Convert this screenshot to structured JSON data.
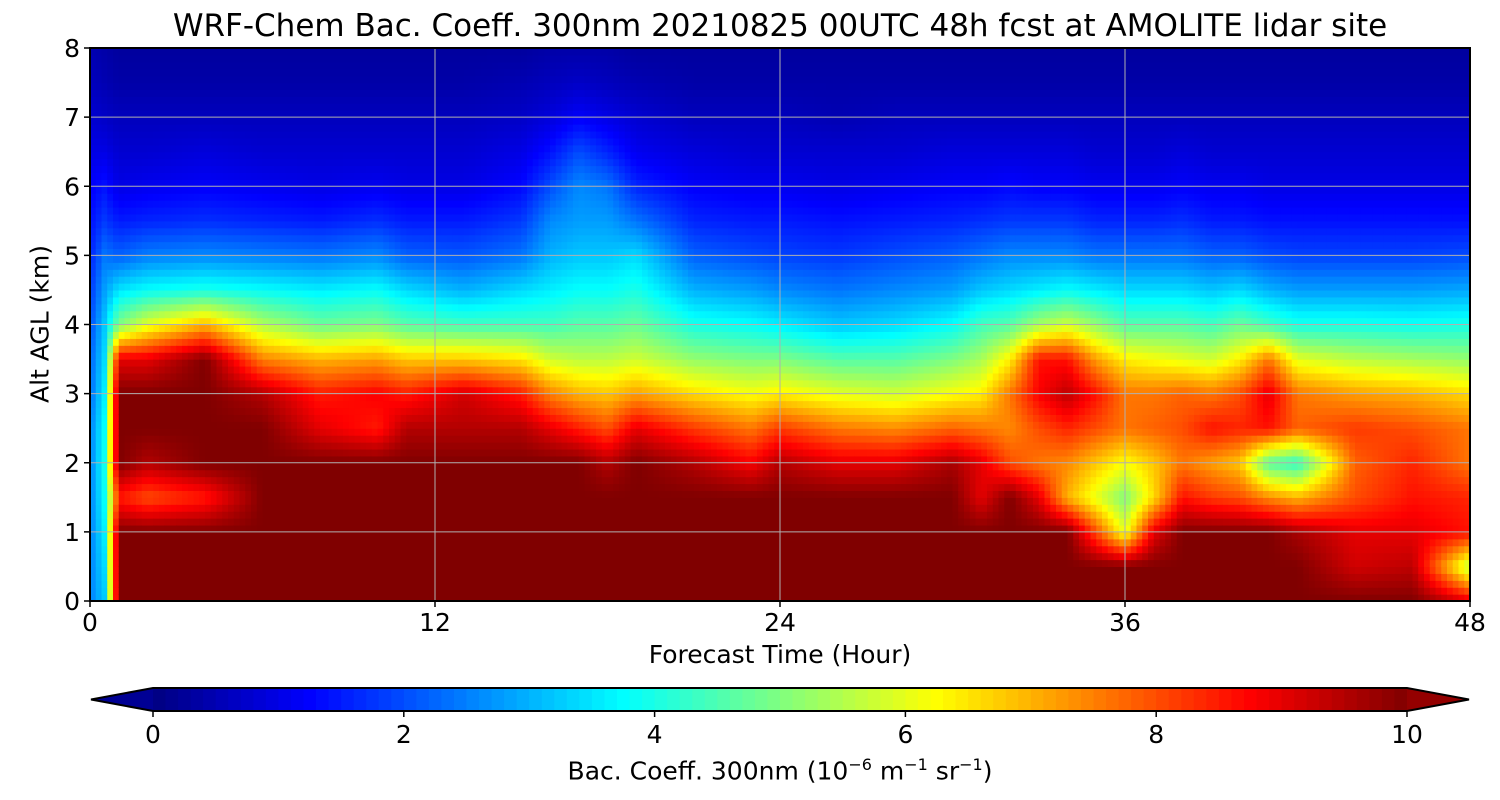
{
  "chart_data": {
    "type": "heatmap",
    "title": "WRF-Chem Bac. Coeff. 300nm  20210825 00UTC 48h fcst at AMOLITE lidar site",
    "xlabel": "Forecast Time (Hour)",
    "ylabel": "Alt AGL (km)",
    "xlim": [
      0,
      48
    ],
    "ylim": [
      0,
      8
    ],
    "xticks": [
      0,
      12,
      24,
      36,
      48
    ],
    "yticks": [
      0,
      1,
      2,
      3,
      4,
      5,
      6,
      7,
      8
    ],
    "grid": true,
    "colormap": "jet",
    "colorbar": {
      "orientation": "horizontal",
      "placement": "bottom",
      "extend": "both",
      "range": [
        0,
        10
      ],
      "ticks": [
        0,
        2,
        4,
        6,
        8,
        10
      ],
      "label_main": "Bac. Coeff. 300nm  (10",
      "label_exp1": "−6",
      "label_unit1": " m",
      "label_exp2": "−1",
      "label_unit2": " sr",
      "label_exp3": "−1",
      "label_close": ")"
    },
    "x": [
      0,
      0.5,
      1,
      2,
      4,
      6,
      8,
      10,
      11,
      13,
      15,
      16,
      17,
      18,
      19,
      21,
      23,
      24,
      26,
      28,
      30,
      31,
      32,
      33,
      34,
      35,
      36,
      37,
      38,
      39,
      40,
      41,
      42,
      44,
      46,
      48
    ],
    "y": [
      0,
      0.5,
      1,
      1.5,
      2,
      2.5,
      3,
      3.5,
      4,
      4.5,
      5,
      5.5,
      6,
      6.5,
      7,
      7.5,
      8
    ],
    "z_description": "grid values as rows per x (bottom to top, y from 0 to 8 km)",
    "z": [
      [
        2.5,
        2.5,
        2.5,
        2.5,
        2.5,
        2.5,
        2.3,
        2.2,
        2.0,
        1.8,
        1.6,
        1.4,
        1.2,
        1.0,
        0.8,
        0.6,
        0.5
      ],
      [
        3.2,
        3.4,
        3.6,
        3.8,
        3.9,
        3.8,
        3.6,
        3.4,
        3.2,
        2.8,
        2.4,
        1.8,
        1.4,
        1.0,
        0.7,
        0.5,
        0.4
      ],
      [
        10,
        10,
        10,
        8.5,
        10,
        10,
        10,
        9,
        5.0,
        3.5,
        2.2,
        1.5,
        1.0,
        0.8,
        0.6,
        0.4,
        0.3
      ],
      [
        10,
        10,
        10,
        8.0,
        9.5,
        10,
        10,
        9,
        6.0,
        3.8,
        2.5,
        1.6,
        1.1,
        0.8,
        0.6,
        0.4,
        0.3
      ],
      [
        10,
        10,
        10,
        8.5,
        10,
        10,
        10,
        10,
        7.0,
        4.0,
        2.6,
        1.7,
        1.2,
        0.9,
        0.6,
        0.4,
        0.3
      ],
      [
        10,
        10,
        10,
        10,
        10,
        10,
        9.5,
        7.5,
        5.5,
        3.8,
        2.5,
        1.6,
        1.1,
        0.8,
        0.6,
        0.4,
        0.3
      ],
      [
        10,
        10,
        10,
        10,
        10,
        9.0,
        8.5,
        7.0,
        4.8,
        3.6,
        2.4,
        1.5,
        1.0,
        0.8,
        0.6,
        0.4,
        0.3
      ],
      [
        10,
        10,
        10,
        10,
        10,
        8.5,
        8.8,
        7.2,
        5.0,
        3.8,
        2.6,
        1.7,
        1.1,
        0.8,
        0.6,
        0.4,
        0.3
      ],
      [
        10,
        10,
        10,
        10,
        10,
        9.5,
        8.5,
        6.8,
        4.6,
        3.4,
        2.2,
        1.5,
        1.0,
        0.8,
        0.6,
        0.4,
        0.3
      ],
      [
        10,
        10,
        10,
        10,
        10,
        9.5,
        9.2,
        6.8,
        4.4,
        3.0,
        2.1,
        1.5,
        1.0,
        0.8,
        0.6,
        0.4,
        0.3
      ],
      [
        10,
        10,
        10,
        10,
        10,
        9.5,
        8.5,
        6.5,
        4.4,
        3.4,
        2.4,
        1.8,
        1.3,
        1.0,
        0.7,
        0.5,
        0.3
      ],
      [
        10,
        10,
        10,
        10,
        10,
        9.0,
        7.5,
        5.8,
        4.4,
        3.6,
        3.0,
        2.6,
        2.0,
        1.4,
        0.9,
        0.6,
        0.4
      ],
      [
        10,
        10,
        10,
        10,
        10,
        8.5,
        7.0,
        5.6,
        4.6,
        3.8,
        3.2,
        2.8,
        2.6,
        2.0,
        1.2,
        0.7,
        0.4
      ],
      [
        10,
        10,
        10,
        10,
        9.5,
        8.0,
        6.8,
        5.6,
        4.6,
        3.8,
        3.2,
        2.8,
        2.4,
        1.6,
        1.0,
        0.6,
        0.4
      ],
      [
        10,
        10,
        10,
        10,
        10,
        9.0,
        7.2,
        5.8,
        4.8,
        4.0,
        3.4,
        2.4,
        1.6,
        1.1,
        0.8,
        0.5,
        0.3
      ],
      [
        10,
        10,
        10,
        10,
        9.5,
        8.2,
        6.6,
        5.2,
        4.0,
        3.0,
        2.2,
        1.6,
        1.2,
        0.9,
        0.6,
        0.4,
        0.3
      ],
      [
        10,
        10,
        10,
        10,
        8.8,
        7.6,
        6.2,
        5.0,
        3.8,
        2.8,
        2.0,
        1.5,
        1.1,
        0.8,
        0.6,
        0.4,
        0.3
      ],
      [
        10,
        10,
        10,
        10,
        9.5,
        8.2,
        6.4,
        5.0,
        3.6,
        2.6,
        1.9,
        1.5,
        1.1,
        0.8,
        0.6,
        0.4,
        0.3
      ],
      [
        10,
        10,
        10,
        10,
        9.0,
        7.6,
        6.0,
        4.6,
        3.2,
        2.4,
        1.8,
        1.4,
        1.0,
        0.8,
        0.5,
        0.4,
        0.3
      ],
      [
        10,
        10,
        10,
        10,
        9.0,
        7.4,
        5.8,
        4.6,
        3.4,
        2.6,
        2.0,
        1.5,
        1.1,
        0.8,
        0.6,
        0.4,
        0.3
      ],
      [
        10,
        10,
        10,
        10,
        9.6,
        7.8,
        6.2,
        5.0,
        3.8,
        2.8,
        2.2,
        1.6,
        1.2,
        0.9,
        0.6,
        0.4,
        0.3
      ],
      [
        10,
        10,
        10,
        9.0,
        9.0,
        7.6,
        6.4,
        5.4,
        4.4,
        3.2,
        2.4,
        1.7,
        1.2,
        0.9,
        0.6,
        0.4,
        0.3
      ],
      [
        10,
        10,
        10,
        10,
        8.0,
        7.4,
        7.6,
        6.4,
        4.6,
        3.4,
        2.6,
        1.8,
        1.3,
        0.9,
        0.6,
        0.4,
        0.3
      ],
      [
        10,
        10,
        10,
        9.0,
        7.6,
        8.0,
        8.8,
        8.6,
        5.4,
        3.6,
        2.6,
        1.8,
        1.2,
        0.9,
        0.6,
        0.4,
        0.3
      ],
      [
        10,
        10,
        10,
        7.0,
        7.4,
        8.4,
        9.4,
        8.6,
        5.8,
        3.8,
        2.6,
        1.8,
        1.2,
        0.9,
        0.6,
        0.4,
        0.3
      ],
      [
        10,
        10,
        8.0,
        6.0,
        6.8,
        8.0,
        8.6,
        7.2,
        5.2,
        3.6,
        2.4,
        1.6,
        1.1,
        0.8,
        0.6,
        0.4,
        0.3
      ],
      [
        10,
        10,
        6.0,
        5.0,
        6.2,
        7.6,
        7.6,
        6.4,
        4.6,
        3.4,
        2.4,
        1.6,
        1.1,
        0.8,
        0.6,
        0.4,
        0.3
      ],
      [
        10,
        10,
        9.0,
        6.6,
        6.8,
        7.8,
        7.6,
        6.2,
        4.6,
        3.4,
        2.4,
        1.6,
        1.1,
        0.8,
        0.6,
        0.4,
        0.3
      ],
      [
        10,
        10,
        10,
        8.6,
        7.6,
        8.0,
        7.8,
        6.0,
        4.6,
        3.4,
        2.4,
        1.7,
        1.2,
        0.9,
        0.6,
        0.4,
        0.3
      ],
      [
        10,
        10,
        10,
        8.2,
        7.2,
        8.6,
        7.6,
        5.8,
        4.4,
        3.2,
        2.2,
        1.5,
        1.1,
        0.8,
        0.6,
        0.4,
        0.3
      ],
      [
        10,
        10,
        10,
        8.0,
        6.8,
        8.4,
        8.0,
        6.4,
        4.8,
        3.4,
        2.2,
        1.5,
        1.1,
        0.8,
        0.6,
        0.4,
        0.3
      ],
      [
        10,
        10,
        10,
        7.4,
        4.6,
        8.6,
        9.0,
        7.6,
        4.4,
        3.0,
        2.0,
        1.4,
        1.0,
        0.8,
        0.6,
        0.4,
        0.3
      ],
      [
        10,
        10,
        9.6,
        7.0,
        4.2,
        7.8,
        7.6,
        6.0,
        4.0,
        2.8,
        1.9,
        1.4,
        1.0,
        0.8,
        0.6,
        0.4,
        0.3
      ],
      [
        10,
        9.2,
        9.0,
        8.0,
        7.8,
        8.2,
        7.2,
        5.6,
        4.0,
        2.8,
        1.9,
        1.4,
        1.0,
        0.8,
        0.6,
        0.4,
        0.3
      ],
      [
        10,
        9.4,
        9.0,
        8.6,
        8.4,
        8.0,
        7.0,
        5.4,
        3.9,
        2.8,
        1.9,
        1.4,
        1.0,
        0.8,
        0.6,
        0.4,
        0.3
      ],
      [
        9.0,
        5.5,
        8.6,
        8.4,
        7.6,
        7.6,
        6.6,
        5.2,
        4.0,
        2.9,
        2.0,
        1.4,
        1.0,
        0.8,
        0.6,
        0.4,
        0.3
      ]
    ]
  }
}
